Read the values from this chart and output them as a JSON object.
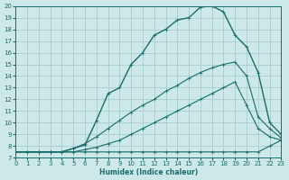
{
  "bg_color": "#cce8e8",
  "line_color": "#1a6b6b",
  "grid_color": "#aacccc",
  "xlabel": "Humidex (Indice chaleur)",
  "xlim": [
    0,
    23
  ],
  "ylim": [
    7,
    20
  ],
  "xticks": [
    0,
    1,
    2,
    3,
    4,
    5,
    6,
    7,
    8,
    9,
    10,
    11,
    12,
    13,
    14,
    15,
    16,
    17,
    18,
    19,
    20,
    21,
    22,
    23
  ],
  "yticks": [
    7,
    8,
    9,
    10,
    11,
    12,
    13,
    14,
    15,
    16,
    17,
    18,
    19,
    20
  ],
  "line1_x": [
    0,
    1,
    2,
    3,
    4,
    5,
    6,
    7,
    8,
    9,
    10,
    11,
    12,
    13,
    14,
    15,
    16,
    17,
    18,
    19,
    20,
    21,
    22,
    23
  ],
  "line1_y": [
    7.5,
    7.5,
    7.5,
    7.5,
    7.5,
    7.5,
    7.5,
    7.5,
    7.5,
    7.5,
    7.5,
    7.5,
    7.5,
    7.5,
    7.5,
    7.5,
    7.5,
    7.5,
    7.5,
    7.5,
    7.5,
    7.5,
    8.0,
    8.5
  ],
  "line2_x": [
    0,
    1,
    2,
    3,
    4,
    5,
    6,
    7,
    8,
    9,
    10,
    11,
    12,
    13,
    14,
    15,
    16,
    17,
    18,
    19,
    20,
    21,
    22,
    23
  ],
  "line2_y": [
    7.5,
    7.5,
    7.5,
    7.5,
    7.5,
    7.5,
    7.7,
    7.9,
    8.2,
    8.5,
    9.0,
    9.5,
    10.0,
    10.5,
    11.0,
    11.5,
    12.0,
    12.5,
    13.0,
    13.5,
    11.5,
    9.5,
    8.8,
    8.5
  ],
  "line3_x": [
    0,
    1,
    2,
    3,
    4,
    5,
    6,
    7,
    8,
    9,
    10,
    11,
    12,
    13,
    14,
    15,
    16,
    17,
    18,
    19,
    20,
    21,
    22,
    23
  ],
  "line3_y": [
    7.5,
    7.5,
    7.5,
    7.5,
    7.5,
    7.8,
    8.2,
    8.8,
    9.5,
    10.2,
    10.9,
    11.5,
    12.0,
    12.7,
    13.2,
    13.8,
    14.3,
    14.7,
    15.0,
    15.2,
    14.0,
    10.5,
    9.5,
    8.7
  ],
  "line4_x": [
    0,
    2,
    3,
    4,
    5,
    6,
    7,
    8,
    9,
    10,
    11,
    12,
    13,
    14,
    15,
    16,
    17,
    18,
    19,
    20,
    21,
    22,
    23
  ],
  "line4_y": [
    7.5,
    7.5,
    7.5,
    7.5,
    7.8,
    8.1,
    10.2,
    12.5,
    13.0,
    15.0,
    16.0,
    17.5,
    18.0,
    18.8,
    19.0,
    19.9,
    20.0,
    19.5,
    17.5,
    16.5,
    14.3,
    10.0,
    9.0
  ]
}
